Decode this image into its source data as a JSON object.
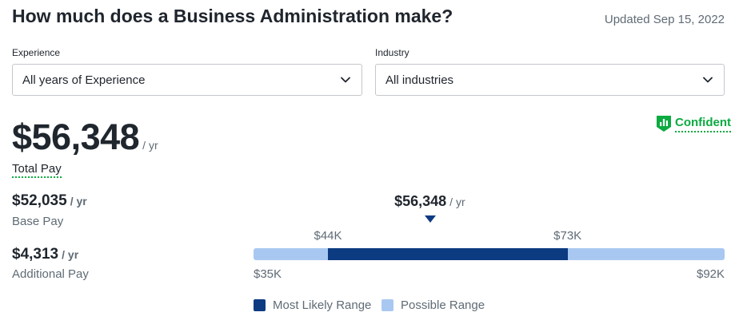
{
  "header": {
    "title": "How much does a Business Administration make?",
    "updated": "Updated Sep 15, 2022"
  },
  "filters": {
    "experience": {
      "label": "Experience",
      "value": "All years of Experience",
      "icon": "chevron-down-icon"
    },
    "industry": {
      "label": "Industry",
      "value": "All industries",
      "icon": "chevron-down-icon"
    }
  },
  "total_pay": {
    "amount": "$56,348",
    "period": "/ yr",
    "label": "Total Pay",
    "confidence": "Confident",
    "confidence_icon": "bar-chart-shield-icon"
  },
  "base_pay": {
    "amount": "$52,035",
    "period": "/ yr",
    "label": "Base Pay"
  },
  "additional_pay": {
    "amount": "$4,313",
    "period": "/ yr",
    "label": "Additional Pay"
  },
  "range": {
    "median_label": "$56,348",
    "median_period": "/ yr",
    "median_value": 56348,
    "min_value": 35000,
    "max_value": 92000,
    "likely_low_value": 44000,
    "likely_high_value": 73000,
    "likely_low_label": "$44K",
    "likely_high_label": "$73K",
    "min_label": "$35K",
    "max_label": "$92K"
  },
  "legend": {
    "most_likely": "Most Likely Range",
    "possible": "Possible Range"
  },
  "colors": {
    "text": "#20262e",
    "muted": "#5f6b75",
    "green": "#0caa41",
    "most_likely": "#0d3b82",
    "possible": "#a9c8f1",
    "border": "#c4c7cc"
  }
}
